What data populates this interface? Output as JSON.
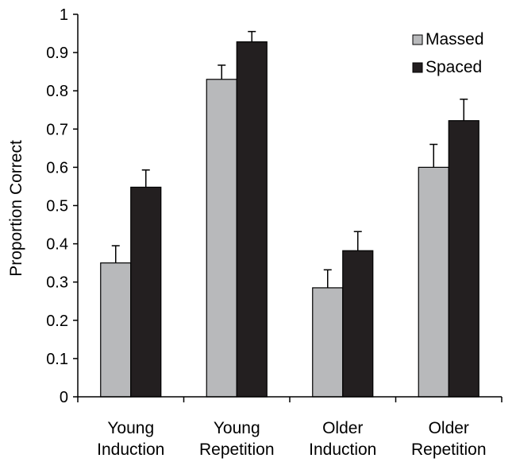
{
  "chart_data": {
    "type": "bar",
    "title": "",
    "xlabel": "",
    "ylabel": "Proportion Correct",
    "ylim": [
      0,
      1
    ],
    "yticks": [
      0,
      0.1,
      0.2,
      0.3,
      0.4,
      0.5,
      0.6,
      0.7,
      0.8,
      0.9,
      1
    ],
    "ytick_labels": [
      "0",
      "0.1",
      "0.2",
      "0.3",
      "0.4",
      "0.5",
      "0.6",
      "0.7",
      "0.8",
      "0.9",
      "1"
    ],
    "categories": [
      [
        "Young",
        "Induction"
      ],
      [
        "Young",
        "Repetition"
      ],
      [
        "Older",
        "Induction"
      ],
      [
        "Older",
        "Repetition"
      ]
    ],
    "series": [
      {
        "name": "Massed",
        "color": "#b8b9bb",
        "values": [
          0.35,
          0.83,
          0.285,
          0.6
        ],
        "errors": [
          0.045,
          0.037,
          0.047,
          0.06
        ]
      },
      {
        "name": "Spaced",
        "color": "#231f20",
        "values": [
          0.548,
          0.928,
          0.382,
          0.722
        ],
        "errors": [
          0.045,
          0.027,
          0.05,
          0.056
        ]
      }
    ],
    "legend": "top-right",
    "grid": false
  }
}
